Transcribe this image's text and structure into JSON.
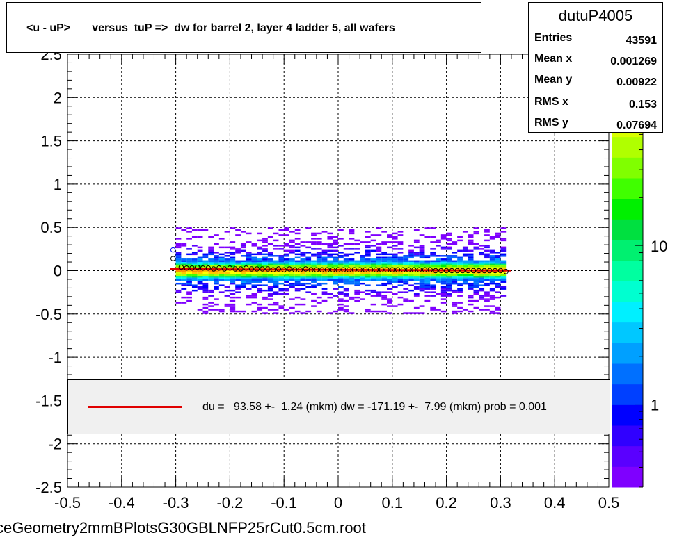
{
  "title": "<u - uP>       versus  tuP =>  dw for barrel 2, layer 4 ladder 5, all wafers",
  "stats": {
    "name": "dutuP4005",
    "rows": [
      {
        "key": "Entries",
        "value": "43591"
      },
      {
        "key": "Mean x",
        "value": "0.001269"
      },
      {
        "key": "Mean y",
        "value": "0.00922"
      },
      {
        "key": "RMS x",
        "value": "0.153"
      },
      {
        "key": "RMS y",
        "value": "0.07694"
      }
    ]
  },
  "legend": {
    "text": "du =   93.58 +-  1.24 (mkm) dw = -171.19 +-  7.99 (mkm) prob = 0.001",
    "line_color": "#e00000"
  },
  "filename": "ceGeometry2mmBPlotsG30GBLNFP25rCut0.5cm.root",
  "colors": {
    "fit_line": "#e00000",
    "palette": [
      "#7f00ff",
      "#5a00ff",
      "#3000ff",
      "#0000ff",
      "#0040ff",
      "#0070ff",
      "#00a0ff",
      "#00c8ff",
      "#00f0ff",
      "#00ffd0",
      "#00ffa0",
      "#00f070",
      "#00e040",
      "#00f000",
      "#40ff00",
      "#80ff00",
      "#b0ff00",
      "#d8ff00",
      "#ffff00",
      "#ffc800",
      "#ff9000"
    ]
  },
  "chart_data": {
    "type": "heatmap",
    "xlim": [
      -0.5,
      0.5
    ],
    "ylim": [
      -2.5,
      2.5
    ],
    "x_ticks": [
      "-0.5",
      "-0.4",
      "-0.3",
      "-0.2",
      "-0.1",
      "0",
      "0.1",
      "0.2",
      "0.3",
      "0.4",
      "0.5"
    ],
    "y_ticks": [
      "-2.5",
      "-2",
      "-1.5",
      "-1",
      "-0.5",
      "0",
      "0.5",
      "1",
      "1.5",
      "2",
      "2.5"
    ],
    "x_tick_values": [
      -0.5,
      -0.4,
      -0.3,
      -0.2,
      -0.1,
      0,
      0.1,
      0.2,
      0.3,
      0.4,
      0.5
    ],
    "y_tick_values": [
      -2.5,
      -2,
      -1.5,
      -1,
      -0.5,
      0,
      0.5,
      1,
      1.5,
      2,
      2.5
    ],
    "grid": true,
    "z_scale": "log",
    "z_ticks": [
      "1",
      "10"
    ],
    "z_tick_values": [
      1,
      10
    ],
    "z_range": [
      0.3,
      160
    ],
    "density_region": {
      "x": [
        -0.3,
        0.31
      ],
      "y": [
        -0.5,
        0.5
      ],
      "core_y": [
        -0.05,
        0.05
      ]
    },
    "profile_points": {
      "x": [
        -0.305,
        -0.29,
        -0.28,
        -0.27,
        -0.26,
        -0.25,
        -0.24,
        -0.23,
        -0.22,
        -0.21,
        -0.2,
        -0.19,
        -0.18,
        -0.17,
        -0.16,
        -0.15,
        -0.14,
        -0.13,
        -0.12,
        -0.11,
        -0.1,
        -0.09,
        -0.08,
        -0.07,
        -0.06,
        -0.05,
        -0.04,
        -0.03,
        -0.02,
        -0.01,
        0,
        0.01,
        0.02,
        0.03,
        0.04,
        0.05,
        0.06,
        0.07,
        0.08,
        0.09,
        0.1,
        0.11,
        0.12,
        0.13,
        0.14,
        0.15,
        0.16,
        0.17,
        0.18,
        0.19,
        0.2,
        0.21,
        0.22,
        0.23,
        0.24,
        0.25,
        0.26,
        0.27,
        0.28,
        0.29,
        0.3,
        0.31
      ],
      "y": [
        0.14,
        0.04,
        0.03,
        0.03,
        0.04,
        0.03,
        0.03,
        0.02,
        0.03,
        0.02,
        0.03,
        0.02,
        0.02,
        0.03,
        0.02,
        0.02,
        0.02,
        0.02,
        0.01,
        0.02,
        0.01,
        0.02,
        0.01,
        0.01,
        0.02,
        0.01,
        0.01,
        0.01,
        0.01,
        0.01,
        0.01,
        0.01,
        0.01,
        0.01,
        0.01,
        0.01,
        0.01,
        0.01,
        0.01,
        0.01,
        0.01,
        0.01,
        0.01,
        0.01,
        0.01,
        0.01,
        0.01,
        0.01,
        0.0,
        0.0,
        0.0,
        0.0,
        0.0,
        0.0,
        0.0,
        0.0,
        0.0,
        0.0,
        0.0,
        0.0,
        0.0,
        -0.01
      ]
    },
    "extra_points": [
      {
        "x": -0.305,
        "y": 0.24,
        "color": "#0000ff"
      }
    ],
    "fit_line": {
      "x": [
        -0.31,
        0.32
      ],
      "y": [
        0.02,
        0.0
      ]
    }
  }
}
